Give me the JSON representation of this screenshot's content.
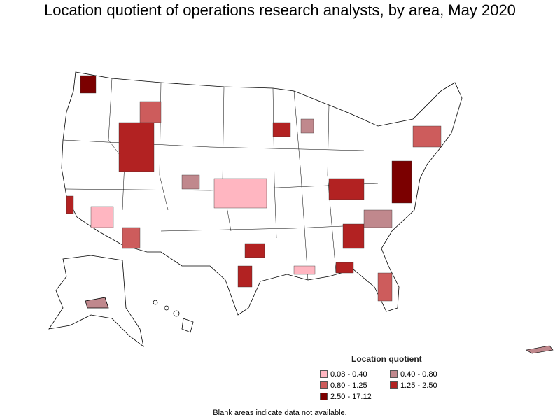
{
  "title": "Location quotient of operations research analysts, by area, May 2020",
  "legend": {
    "title": "Location quotient",
    "items": [
      {
        "label": "0.08 - 0.40",
        "color": "#ffb6c1"
      },
      {
        "label": "0.40 - 0.80",
        "color": "#c0888d"
      },
      {
        "label": "0.80 - 1.25",
        "color": "#cd5c5c"
      },
      {
        "label": "1.25 - 2.50",
        "color": "#b22222"
      },
      {
        "label": "2.50 - 17.12",
        "color": "#7b0000"
      }
    ]
  },
  "footnote": "Blank areas indicate data not available.",
  "map": {
    "regions": [
      "contiguous-us",
      "alaska",
      "hawaii",
      "puerto-rico"
    ],
    "outline_color": "#000000",
    "no_data_color": "#ffffff"
  }
}
